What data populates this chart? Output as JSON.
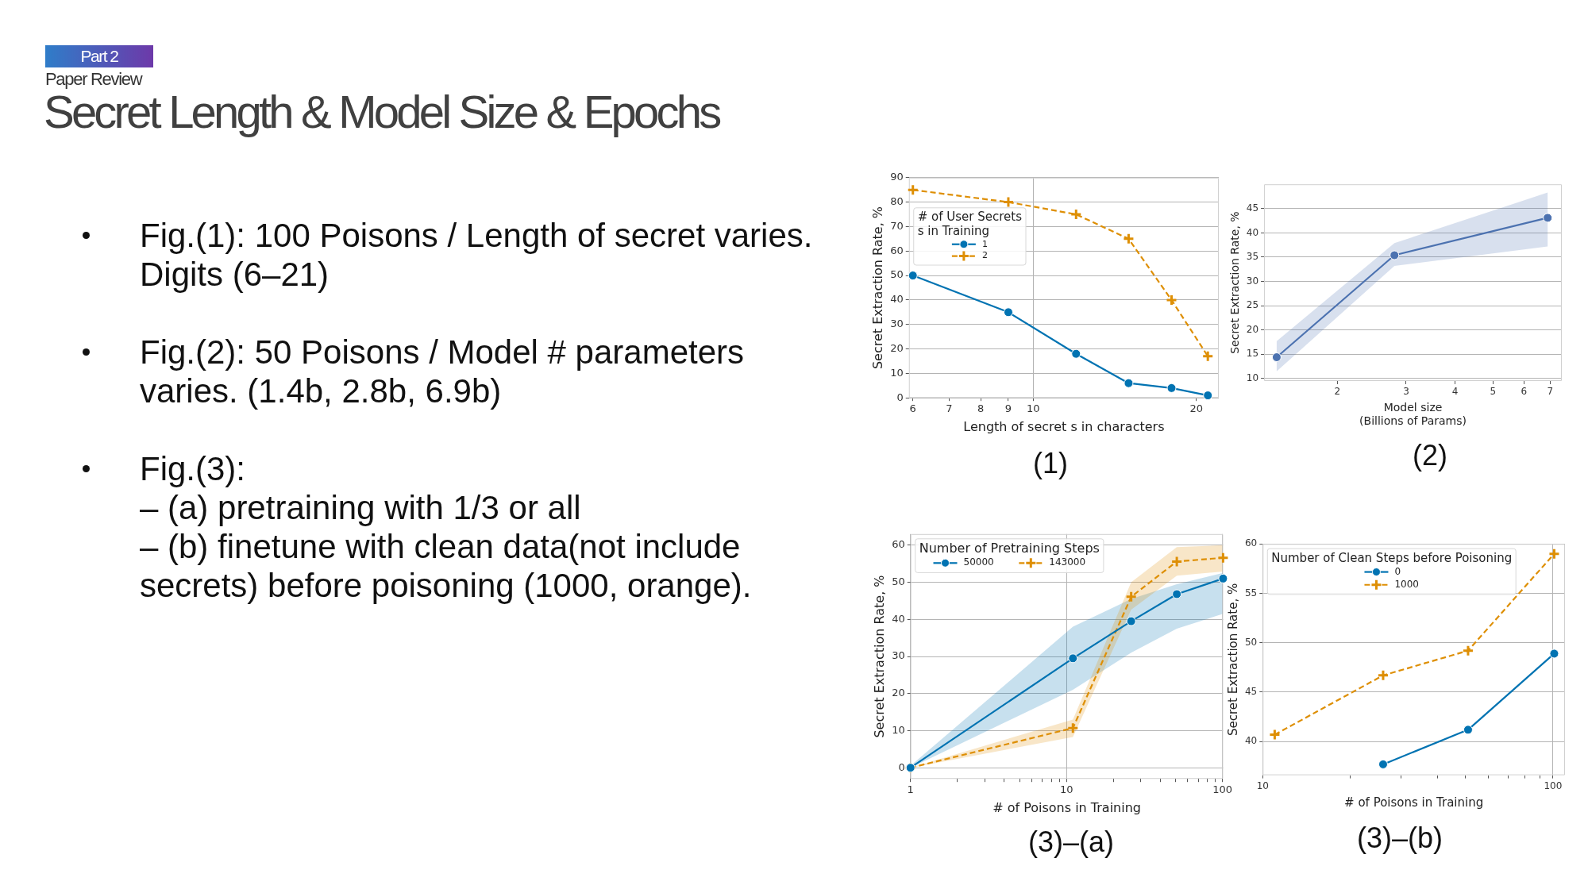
{
  "chart_data": [
    {
      "type": "other",
      "title": "Secret Length & Model Size & Epochs",
      "subtitle": "Paper Review",
      "annotations": [
        "Part 2",
        "Fig.(1): 100 Poisons / Length of secret varies. Digits (6–21)",
        "Fig.(2): 50 Poisons / Model # parameters varies. (1.4b, 2.8b, 6.9b)",
        "Fig.(3):",
        "– (a) pretraining with 1/3 or all",
        "– (b) finetune with clean data(not include secrets) before poisoning (1000, orange)."
      ]
    },
    {
      "type": "line",
      "title": "(1)",
      "xlabel": "Length of secret s in characters",
      "ylabel": "Secret Extraction Rate, %",
      "legend_title": "# of User Secrets\ns in Training",
      "x": [
        6,
        9,
        12,
        15,
        18,
        21
      ],
      "series": [
        {
          "name": "1",
          "color": "#0173b2",
          "values": [
            50,
            35,
            18,
            6,
            4,
            1
          ],
          "marker": "circle",
          "line_style": "solid"
        },
        {
          "name": "2",
          "color": "#de8f05",
          "values": [
            85,
            80,
            75,
            65,
            40,
            17
          ],
          "marker": "cross",
          "line_style": "dashed"
        }
      ],
      "xlim": [
        5.9,
        22
      ],
      "ylim": [
        0,
        90
      ],
      "xticks": [
        6,
        7,
        8,
        9,
        10,
        20
      ],
      "yticks": [
        0,
        10,
        20,
        30,
        40,
        50,
        60,
        70,
        80,
        90
      ],
      "log": "x",
      "grid": true,
      "legend": "top left"
    },
    {
      "type": "line",
      "title": "(2)",
      "xlabel": "Model size\n(Billions of Params)",
      "ylabel": "Secret Extraction Rate, %",
      "x": [
        1.4,
        2.8,
        6.9
      ],
      "series": [
        {
          "color": "#4c72b0",
          "values": [
            14.4,
            35.4,
            43.1
          ],
          "lower": [
            11.5,
            33.2,
            37.2
          ],
          "upper": [
            17.7,
            37.9,
            48.3
          ]
        }
      ],
      "xlim": [
        1.3,
        7.5
      ],
      "ylim": [
        9.5,
        50
      ],
      "xticks": [
        2,
        3,
        4,
        5,
        6,
        7
      ],
      "yticks": [
        10,
        15,
        20,
        25,
        30,
        35,
        40,
        45
      ],
      "log": "x",
      "grid": true,
      "marker": "circle",
      "line_style": "solid"
    },
    {
      "type": "line",
      "title": "(3)–(a)",
      "xlabel": "# of Poisons in Training",
      "ylabel": "Secret Extraction Rate, %",
      "legend_title": "Number of Pretraining Steps",
      "x": [
        1,
        11,
        26,
        51,
        101
      ],
      "series": [
        {
          "name": "50000",
          "color": "#0173b2",
          "values": [
            0,
            29.5,
            39.5,
            46.8,
            51
          ],
          "lower": [
            0,
            21,
            31,
            37.5,
            41.5
          ],
          "upper": [
            0.5,
            38,
            45.5,
            49.5,
            52.5
          ],
          "marker": "circle",
          "line_style": "solid"
        },
        {
          "name": "143000",
          "color": "#de8f05",
          "values": [
            0,
            10.7,
            46.1,
            55.6,
            56.6
          ],
          "lower": [
            0,
            8.3,
            42.6,
            51.8,
            52.9
          ],
          "upper": [
            0,
            13,
            50,
            59.5,
            60
          ],
          "marker": "cross",
          "line_style": "dashed"
        }
      ],
      "xlim": [
        1,
        101
      ],
      "ylim": [
        -3,
        63
      ],
      "xticks": [
        1,
        {
          "value": 2,
          "label": null
        },
        {
          "value": 3,
          "label": null
        },
        {
          "value": 4,
          "label": null
        },
        {
          "value": 5,
          "label": null
        },
        {
          "value": 6,
          "label": null
        },
        {
          "value": 7,
          "label": null
        },
        {
          "value": 8,
          "label": null
        },
        {
          "value": 9,
          "label": null
        },
        10,
        {
          "value": 20,
          "label": null
        },
        {
          "value": 30,
          "label": null
        },
        {
          "value": 40,
          "label": null
        },
        {
          "value": 50,
          "label": null
        },
        {
          "value": 60,
          "label": null
        },
        {
          "value": 70,
          "label": null
        },
        {
          "value": 80,
          "label": null
        },
        {
          "value": 90,
          "label": null
        },
        100
      ],
      "yticks": [
        0,
        10,
        20,
        30,
        40,
        50,
        60
      ],
      "log": "x",
      "grid": true,
      "legend": "top left"
    },
    {
      "type": "line",
      "title": "(3)–(b)",
      "xlabel": "# of Poisons in Training",
      "ylabel": "Secret Extraction Rate, %",
      "legend_title": "Number of Clean Steps before Poisoning",
      "x": [
        11,
        26,
        51,
        101
      ],
      "series": [
        {
          "name": "0",
          "color": "#0173b2",
          "values": [
            null,
            37.7,
            41.2,
            48.9
          ],
          "marker": "circle",
          "line_style": "solid"
        },
        {
          "name": "1000",
          "color": "#de8f05",
          "values": [
            40.7,
            46.7,
            49.2,
            59
          ],
          "marker": "cross",
          "line_style": "dashed"
        }
      ],
      "xlim": [
        10,
        110
      ],
      "ylim": [
        36.6,
        60
      ],
      "xticks": [
        10,
        {
          "value": 20,
          "label": null
        },
        {
          "value": 30,
          "label": null
        },
        {
          "value": 40,
          "label": null
        },
        {
          "value": 50,
          "label": null
        },
        {
          "value": 60,
          "label": null
        },
        {
          "value": 70,
          "label": null
        },
        {
          "value": 80,
          "label": null
        },
        {
          "value": 90,
          "label": null
        },
        100
      ],
      "yticks": [
        40,
        45,
        50,
        55,
        60
      ],
      "log": "x",
      "grid": true,
      "legend": "top left"
    }
  ]
}
